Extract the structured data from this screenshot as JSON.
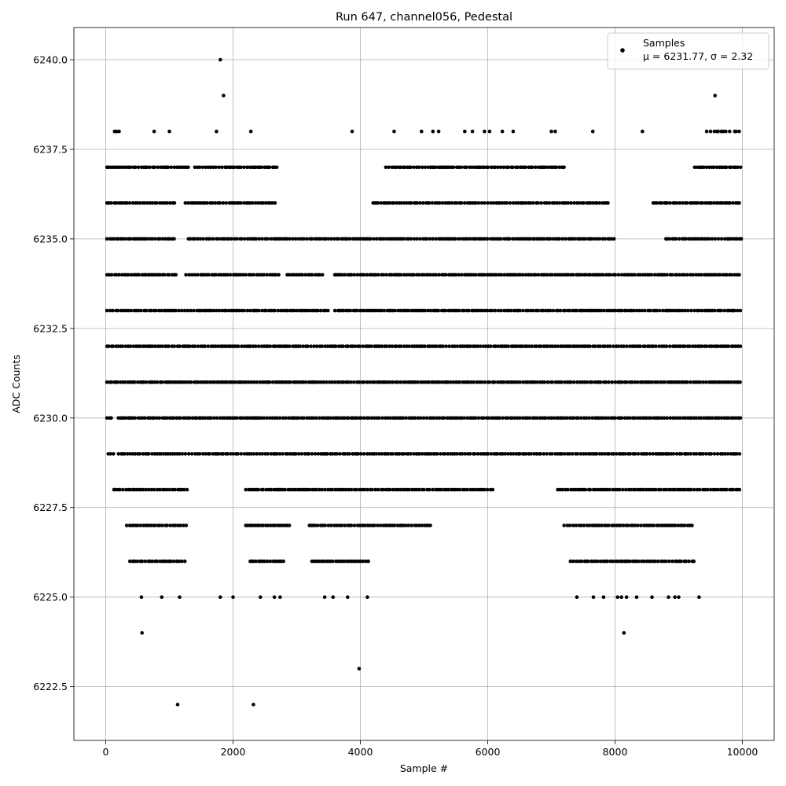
{
  "chart_data": {
    "type": "scatter",
    "title": "Run 647, channel056, Pedestal",
    "xlabel": "Sample #",
    "ylabel": "ADC Counts",
    "xlim": [
      -500,
      10500
    ],
    "ylim": [
      6221.0,
      6240.9
    ],
    "xticks": [
      0,
      2000,
      4000,
      6000,
      8000,
      10000
    ],
    "xtick_labels": [
      "0",
      "2000",
      "4000",
      "6000",
      "8000",
      "10000"
    ],
    "yticks": [
      6222.5,
      6225.0,
      6227.5,
      6230.0,
      6232.5,
      6235.0,
      6237.5,
      6240.0
    ],
    "ytick_labels": [
      "6222.5",
      "6225.0",
      "6227.5",
      "6230.0",
      "6232.5",
      "6235.0",
      "6237.5",
      "6240.0"
    ],
    "grid": true,
    "legend": {
      "position": "top-right",
      "entries": [
        {
          "label_line1": "Samples",
          "label_line2": "μ = 6231.77, σ = 2.32"
        }
      ]
    },
    "marker_color": "#000000",
    "series": [
      {
        "name": "Samples",
        "levels": [
          {
            "y": 6234,
            "segments": [
              [
                20,
                1120
              ],
              [
                1260,
                2750
              ],
              [
                2850,
                3420
              ],
              [
                3600,
                9990
              ]
            ]
          },
          {
            "y": 6233,
            "segments": [
              [
                20,
                3500
              ],
              [
                3600,
                9990
              ]
            ]
          },
          {
            "y": 6232,
            "segments": [
              [
                20,
                9990
              ]
            ]
          },
          {
            "y": 6231,
            "segments": [
              [
                20,
                9990
              ]
            ]
          },
          {
            "y": 6230,
            "segments": [
              [
                20,
                90
              ],
              [
                200,
                9990
              ]
            ]
          },
          {
            "y": 6229,
            "segments": [
              [
                40,
                150
              ],
              [
                200,
                9990
              ]
            ]
          },
          {
            "y": 6235,
            "segments": [
              [
                20,
                1100
              ],
              [
                1300,
                8000
              ],
              [
                8800,
                9990
              ]
            ]
          },
          {
            "y": 6228,
            "segments": [
              [
                130,
                1300
              ],
              [
                2200,
                6100
              ],
              [
                7100,
                9990
              ]
            ]
          },
          {
            "y": 6236,
            "segments": [
              [
                20,
                1100
              ],
              [
                1250,
                2700
              ],
              [
                4200,
                7900
              ],
              [
                8600,
                9990
              ]
            ]
          },
          {
            "y": 6237,
            "segments": [
              [
                20,
                1300
              ],
              [
                1400,
                2700
              ],
              [
                4400,
                7200
              ],
              [
                9250,
                9990
              ]
            ]
          },
          {
            "y": 6227,
            "segments": [
              [
                330,
                1300
              ],
              [
                2200,
                2900
              ],
              [
                3200,
                5100
              ],
              [
                7200,
                9250
              ]
            ]
          },
          {
            "y": 6226,
            "segments": [
              [
                380,
                1270
              ],
              [
                2270,
                2800
              ],
              [
                3240,
                4140
              ],
              [
                7300,
                9250
              ]
            ]
          }
        ],
        "x": [
          140,
          170,
          210,
          760,
          1000,
          1740,
          2280,
          3870,
          4530,
          4960,
          5140,
          5230,
          5640,
          5760,
          5950,
          6030,
          6230,
          6400,
          7000,
          7060,
          7650,
          8430,
          9440,
          9600,
          9700,
          9800,
          9900,
          9950,
          9500,
          9560,
          9620,
          9670,
          9740,
          9880,
          560,
          880,
          1160,
          1800,
          2000,
          2430,
          2650,
          2740,
          3440,
          3570,
          3800,
          4110,
          7400,
          7660,
          7820,
          8040,
          8100,
          8180,
          8340,
          8580,
          8840,
          8940,
          9000,
          9320,
          1800,
          1850,
          9570,
          570,
          8140,
          3980,
          1130,
          2320
        ],
        "y": [
          6238,
          6238,
          6238,
          6238,
          6238,
          6238,
          6238,
          6238,
          6238,
          6238,
          6238,
          6238,
          6238,
          6238,
          6238,
          6238,
          6238,
          6238,
          6238,
          6238,
          6238,
          6238,
          6238,
          6238,
          6238,
          6238,
          6238,
          6238,
          6238,
          6238,
          6238,
          6238,
          6238,
          6238,
          6225,
          6225,
          6225,
          6225,
          6225,
          6225,
          6225,
          6225,
          6225,
          6225,
          6225,
          6225,
          6225,
          6225,
          6225,
          6225,
          6225,
          6225,
          6225,
          6225,
          6225,
          6225,
          6225,
          6225,
          6240,
          6239,
          6239,
          6224,
          6224,
          6223,
          6222,
          6222
        ]
      }
    ]
  }
}
